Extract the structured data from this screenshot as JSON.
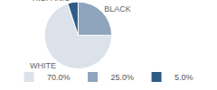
{
  "chart_data": {
    "type": "pie",
    "categories": [
      "WHITE",
      "BLACK",
      "HISPANIC"
    ],
    "values": [
      70,
      25,
      5
    ],
    "value_labels": [
      "70.0%",
      "25.0%",
      "5.0%"
    ],
    "colors": [
      "#dbe2ea",
      "#8fa5bd",
      "#2d5c86"
    ],
    "legend": "bottom"
  }
}
